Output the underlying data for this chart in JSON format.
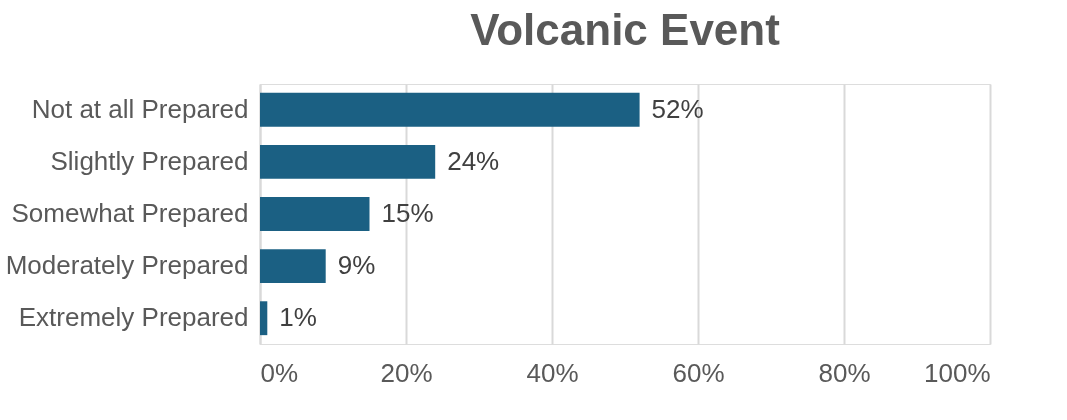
{
  "chart_data": {
    "type": "bar",
    "orientation": "horizontal",
    "title": "Volcanic Event",
    "categories": [
      "Not at all Prepared",
      "Slightly Prepared",
      "Somewhat Prepared",
      "Moderately Prepared",
      "Extremely Prepared"
    ],
    "values": [
      52,
      24,
      15,
      9,
      1
    ],
    "value_labels": [
      "52%",
      "24%",
      "15%",
      "9%",
      "1%"
    ],
    "color": "#1b6083",
    "xlim": [
      0,
      100
    ],
    "xticks": [
      {
        "value": 0,
        "label": "0%"
      },
      {
        "value": 20,
        "label": "20%"
      },
      {
        "value": 40,
        "label": "40%"
      },
      {
        "value": 60,
        "label": "60%"
      },
      {
        "value": 80,
        "label": "80%"
      },
      {
        "value": 100,
        "label": "100%"
      }
    ],
    "grid": "x"
  }
}
